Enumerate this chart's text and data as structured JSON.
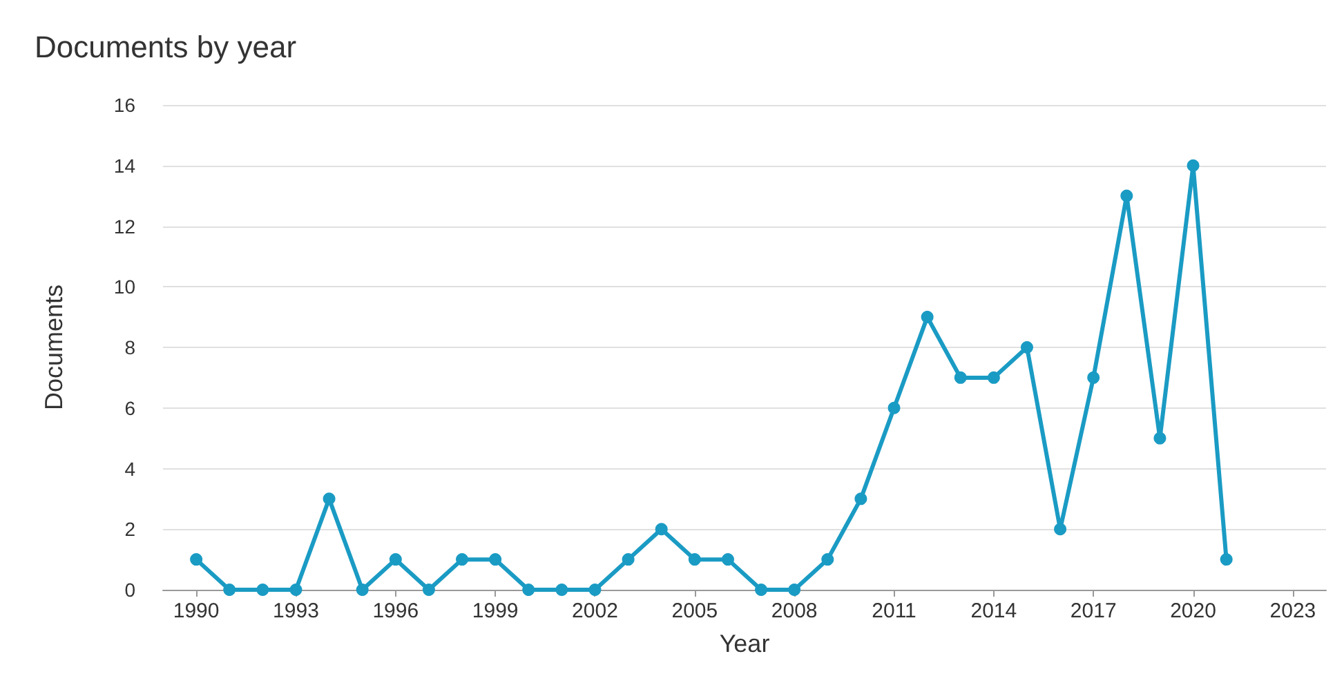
{
  "chart_data": {
    "type": "line",
    "title": "Documents by year",
    "xlabel": "Year",
    "ylabel": "Documents",
    "x": [
      1990,
      1991,
      1992,
      1993,
      1994,
      1995,
      1996,
      1997,
      1998,
      1999,
      2000,
      2001,
      2002,
      2003,
      2004,
      2005,
      2006,
      2007,
      2008,
      2009,
      2010,
      2011,
      2012,
      2013,
      2014,
      2015,
      2016,
      2017,
      2018,
      2019,
      2020,
      2021
    ],
    "series": [
      {
        "color": "#1a9bc4",
        "values": [
          1,
          0,
          0,
          0,
          3,
          0,
          1,
          0,
          1,
          1,
          0,
          0,
          0,
          1,
          2,
          1,
          1,
          0,
          0,
          1,
          3,
          6,
          9,
          7,
          7,
          8,
          2,
          7,
          13,
          5,
          14,
          1
        ]
      }
    ],
    "xlim": [
      1989,
      2024
    ],
    "xticks": [
      1990,
      1993,
      1996,
      1999,
      2002,
      2005,
      2008,
      2011,
      2014,
      2017,
      2020,
      2023
    ],
    "ylim": [
      0,
      16
    ],
    "yticks": [
      0,
      2,
      4,
      6,
      8,
      10,
      12,
      14,
      16
    ],
    "grid": "y",
    "marker": "circle",
    "line_style": "solid"
  }
}
